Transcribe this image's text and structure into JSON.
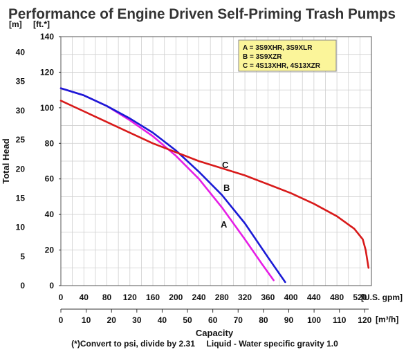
{
  "chart_data": {
    "type": "line",
    "title": "Performance of Engine Driven Self-Priming Trash Pumps",
    "ylabel": "Total Head",
    "xlabel": "Capacity",
    "y_units_left": "[m]",
    "y_units_right": "[ft.*]",
    "x_units_primary": "[U.S. gpm]",
    "x_units_secondary": "[m³/h]",
    "ylim_ft": [
      0,
      140
    ],
    "xlim_gpm": [
      0,
      540
    ],
    "grid": true,
    "y_ticks_m": [
      "0",
      "5",
      "10",
      "15",
      "20",
      "25",
      "30",
      "35",
      "40"
    ],
    "y_ticks_ft": [
      "0",
      "20",
      "40",
      "60",
      "80",
      "100",
      "120",
      "140"
    ],
    "x_ticks_gpm": [
      "0",
      "40",
      "80",
      "120",
      "160",
      "200",
      "240",
      "280",
      "320",
      "360",
      "400",
      "440",
      "480",
      "520"
    ],
    "x_ticks_m3h": [
      "0",
      "10",
      "20",
      "30",
      "40",
      "50",
      "60",
      "70",
      "80",
      "90",
      "100",
      "110",
      "120"
    ],
    "legend_placement": "top-right",
    "legend": [
      "A = 3S9XHR, 3S9XLR",
      "B = 3S9XZR",
      "C = 4S13XHR, 4S13XZR"
    ],
    "series": [
      {
        "name": "A",
        "color": "#e61ee6",
        "x": [
          0,
          40,
          80,
          120,
          160,
          200,
          240,
          280,
          320,
          350,
          370
        ],
        "y": [
          111,
          107,
          101,
          93,
          84,
          73,
          60,
          44,
          26,
          12,
          3
        ]
      },
      {
        "name": "B",
        "color": "#1a1ad6",
        "x": [
          0,
          40,
          80,
          120,
          160,
          200,
          240,
          280,
          320,
          360,
          390
        ],
        "y": [
          111,
          107,
          101,
          94,
          86,
          76,
          64,
          51,
          35,
          16,
          2
        ]
      },
      {
        "name": "C",
        "color": "#d81a1a",
        "x": [
          0,
          40,
          80,
          120,
          160,
          200,
          240,
          280,
          320,
          360,
          400,
          440,
          480,
          510,
          525,
          530,
          535
        ],
        "y": [
          104,
          98,
          92,
          86,
          80,
          75,
          70,
          66,
          62,
          57,
          52,
          46,
          39,
          32,
          26,
          20,
          10
        ]
      }
    ],
    "annotations": [
      "A",
      "B",
      "C"
    ]
  },
  "footnote": "(*)Convert to psi, divide by 2.31     Liquid - Water specific gravity 1.0"
}
